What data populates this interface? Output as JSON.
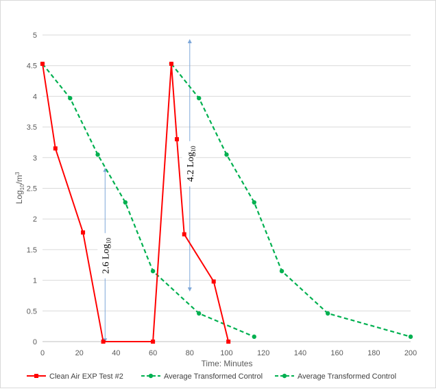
{
  "chart_data": {
    "type": "line",
    "title": "",
    "xlabel": "Time: Minutes",
    "ylabel": {
      "base": "Log",
      "sub": "10",
      "mid": "/m",
      "sup": "3"
    },
    "xlim": [
      0,
      200
    ],
    "ylim": [
      0,
      5
    ],
    "xticks": [
      "0",
      "20",
      "40",
      "60",
      "80",
      "100",
      "120",
      "140",
      "160",
      "180",
      "200"
    ],
    "yticks": [
      "0",
      "0.5",
      "1",
      "1.5",
      "2",
      "2.5",
      "3",
      "3.5",
      "4",
      "4.5",
      "5"
    ],
    "grid": "horizontal",
    "legend_position": "bottom",
    "series": [
      {
        "name": "Clean Air EXP Test #2",
        "color": "#ff0000",
        "style": "solid",
        "marker": "square",
        "points": [
          [
            0,
            4.53
          ],
          [
            7,
            3.15
          ],
          [
            22,
            1.78
          ],
          [
            33,
            0.0
          ],
          [
            60,
            0.0
          ],
          [
            70,
            4.53
          ],
          [
            73,
            3.3
          ],
          [
            77,
            1.75
          ],
          [
            93,
            0.98
          ],
          [
            101,
            0.0
          ]
        ]
      },
      {
        "name": "Average Transformed Control",
        "color": "#00b050",
        "style": "dashed",
        "marker": "circle",
        "points": [
          [
            0,
            4.53
          ],
          [
            15,
            3.97
          ],
          [
            30,
            3.05
          ],
          [
            45,
            2.27
          ],
          [
            60,
            1.15
          ],
          [
            85,
            0.46
          ],
          [
            115,
            0.08
          ]
        ]
      },
      {
        "name": "Average Transformed Control",
        "color": "#00b050",
        "style": "dashed",
        "marker": "circle",
        "points": [
          [
            70,
            4.53
          ],
          [
            85,
            3.97
          ],
          [
            100,
            3.05
          ],
          [
            115,
            2.27
          ],
          [
            130,
            1.15
          ],
          [
            155,
            0.46
          ],
          [
            200,
            0.08
          ]
        ]
      }
    ],
    "annotations": [
      {
        "label_base": "2.6 Log",
        "label_sub": "10",
        "x": 34,
        "y_from": 0.02,
        "y_to": 2.8,
        "label_y": 1.4,
        "color": "#7da7d9"
      },
      {
        "label_base": "4.2 Log",
        "label_sub": "10",
        "x": 80,
        "y_from": 0.85,
        "y_to": 4.9,
        "label_y": 2.9,
        "color": "#7da7d9"
      }
    ]
  }
}
